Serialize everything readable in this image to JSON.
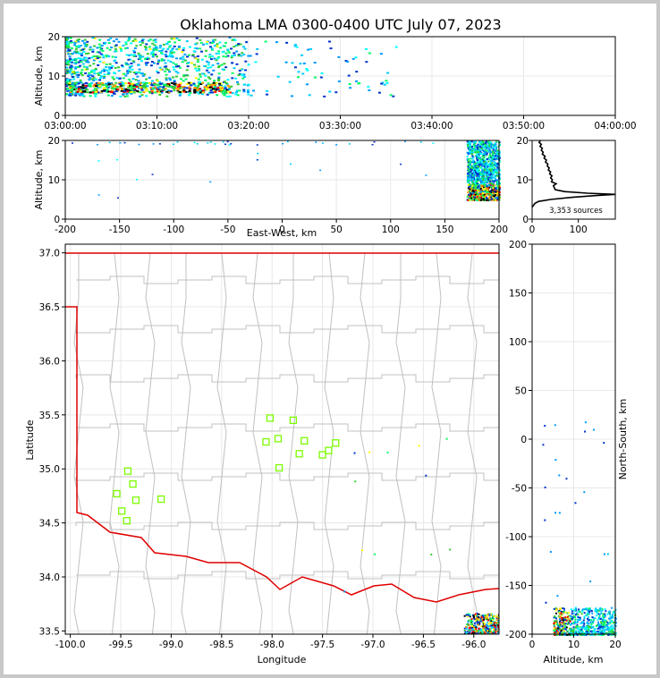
{
  "title": "Oklahoma LMA 0300-0400 UTC July 07, 2023",
  "colors": {
    "frame": "#c8c8c8",
    "state_border": "#e00000",
    "county": "#c0c0c0",
    "station": "#7cfc00",
    "grid": "#e8e8e8",
    "hist": "#000000"
  },
  "chart_data": [
    {
      "id": "time_height",
      "type": "heatmap",
      "ylabel": "Altitude, km",
      "xlabel": "",
      "xlim": [
        "03:00:00",
        "04:00:00"
      ],
      "ylim": [
        0,
        20
      ],
      "xticks": [
        "03:00:00",
        "03:10:00",
        "03:20:00",
        "03:30:00",
        "03:40:00",
        "03:50:00",
        "04:00:00"
      ],
      "yticks": [
        0,
        10,
        20
      ],
      "grid": true
    },
    {
      "id": "ew_height",
      "type": "heatmap",
      "xlabel": "East-West, km",
      "ylabel": "Altitude, km",
      "xlim": [
        -200,
        200
      ],
      "ylim": [
        0,
        20
      ],
      "xticks": [
        -200,
        -150,
        -100,
        -50,
        0,
        50,
        100,
        150,
        200
      ],
      "yticks": [
        0,
        10,
        20
      ],
      "grid": true
    },
    {
      "id": "altitude_histogram",
      "type": "line",
      "annotation": "3,353 sources",
      "xlim": [
        0,
        180
      ],
      "ylim": [
        0,
        20
      ],
      "xticks": [
        0,
        100
      ],
      "yticks": [
        0,
        10,
        20
      ],
      "points": [
        [
          0,
          3
        ],
        [
          3,
          3.5
        ],
        [
          6,
          4
        ],
        [
          14,
          4.5
        ],
        [
          40,
          5
        ],
        [
          90,
          5.6
        ],
        [
          140,
          6
        ],
        [
          180,
          6.3
        ],
        [
          120,
          6.6
        ],
        [
          70,
          7
        ],
        [
          50,
          7.5
        ],
        [
          48,
          8
        ],
        [
          46,
          8.5
        ],
        [
          52,
          9
        ],
        [
          42,
          9.5
        ],
        [
          44,
          10
        ],
        [
          40,
          10.5
        ],
        [
          43,
          11
        ],
        [
          38,
          11.5
        ],
        [
          40,
          12
        ],
        [
          35,
          12.5
        ],
        [
          37,
          13
        ],
        [
          33,
          13.5
        ],
        [
          34,
          14
        ],
        [
          29,
          14.5
        ],
        [
          31,
          15
        ],
        [
          26,
          15.5
        ],
        [
          28,
          16
        ],
        [
          22,
          16.5
        ],
        [
          24,
          17
        ],
        [
          20,
          17.5
        ],
        [
          22,
          18
        ],
        [
          17,
          18.5
        ],
        [
          20,
          19
        ],
        [
          15,
          19.5
        ],
        [
          18,
          20
        ]
      ]
    },
    {
      "id": "plan_view",
      "type": "scatter",
      "xlabel": "Longitude",
      "ylabel": "Latitude",
      "xlim": [
        -100.05,
        -95.75
      ],
      "ylim": [
        33.47,
        37.08
      ],
      "xticks": [
        -100.0,
        -99.5,
        -99.0,
        -98.5,
        -98.0,
        -97.5,
        -97.0,
        -96.5,
        -96.0
      ],
      "yticks": [
        33.5,
        34.0,
        34.5,
        35.0,
        35.5,
        36.0,
        36.5,
        37.0
      ],
      "stations": [
        [
          -98.02,
          35.47
        ],
        [
          -97.79,
          35.45
        ],
        [
          -98.06,
          35.25
        ],
        [
          -97.94,
          35.28
        ],
        [
          -97.68,
          35.26
        ],
        [
          -97.37,
          35.24
        ],
        [
          -97.73,
          35.14
        ],
        [
          -97.5,
          35.13
        ],
        [
          -97.44,
          35.17
        ],
        [
          -97.93,
          35.01
        ],
        [
          -99.43,
          34.98
        ],
        [
          -99.38,
          34.86
        ],
        [
          -99.54,
          34.77
        ],
        [
          -99.35,
          34.71
        ],
        [
          -99.1,
          34.72
        ],
        [
          -99.49,
          34.61
        ],
        [
          -99.44,
          34.52
        ]
      ],
      "grid": true
    },
    {
      "id": "ns_height",
      "type": "heatmap",
      "xlabel": "Altitude, km",
      "ylabel": "North-South, km",
      "xlim": [
        0,
        20
      ],
      "ylim": [
        -200,
        200
      ],
      "xticks": [
        0,
        10,
        20
      ],
      "yticks": [
        -200,
        -150,
        -100,
        -50,
        0,
        50,
        100,
        150,
        200
      ],
      "grid": true
    }
  ]
}
